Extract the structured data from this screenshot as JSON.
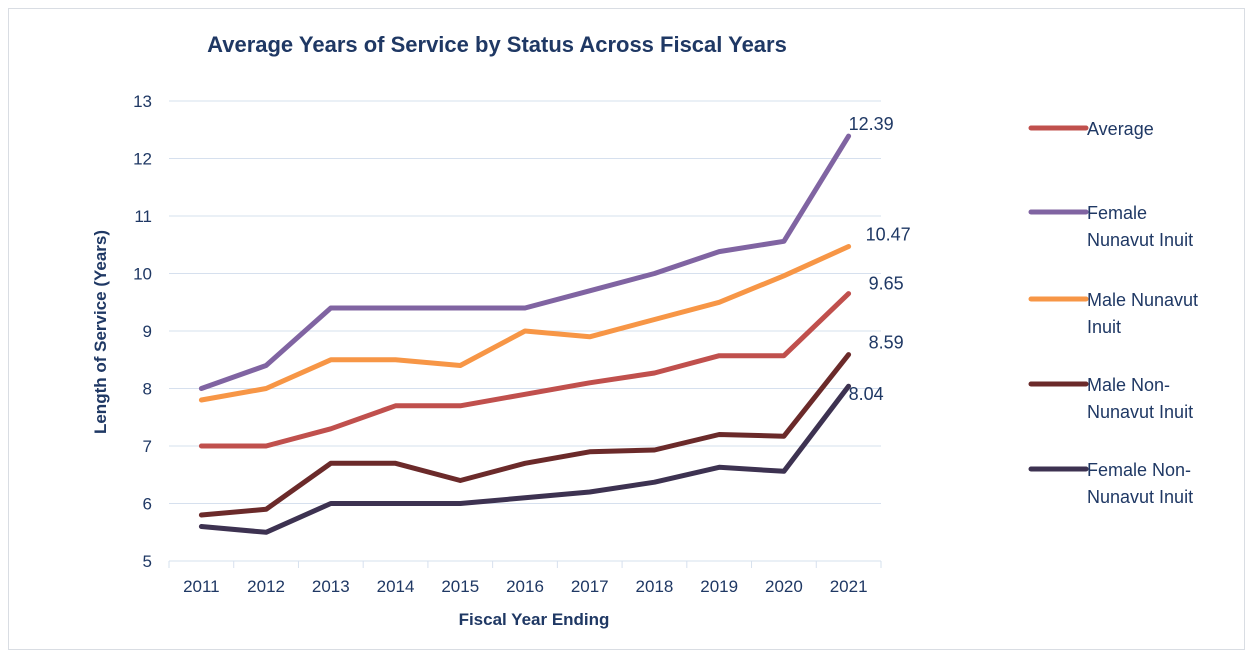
{
  "chart_data": {
    "type": "line",
    "title": "Average Years of Service by Status Across Fiscal  Years",
    "xlabel": "Fiscal Year Ending",
    "ylabel": "Length of Service (Years)",
    "categories": [
      "2011",
      "2012",
      "2013",
      "2014",
      "2015",
      "2016",
      "2017",
      "2018",
      "2019",
      "2020",
      "2021"
    ],
    "ylim": [
      5,
      13
    ],
    "yticks": [
      5,
      6,
      7,
      8,
      9,
      10,
      11,
      12,
      13
    ],
    "grid": true,
    "legend_position": "right",
    "series": [
      {
        "name": "Average",
        "legend_lines": [
          "Average"
        ],
        "color": "#c0504d",
        "values": [
          7.0,
          7.0,
          7.3,
          7.7,
          7.7,
          7.9,
          8.1,
          8.27,
          8.57,
          8.57,
          9.65
        ],
        "end_label": "9.65"
      },
      {
        "name": "Female Nunavut Inuit",
        "legend_lines": [
          "Female",
          "Nunavut Inuit"
        ],
        "color": "#8064a2",
        "values": [
          8.0,
          8.4,
          9.4,
          9.4,
          9.4,
          9.4,
          9.7,
          10.0,
          10.38,
          10.56,
          12.39
        ],
        "end_label": "12.39"
      },
      {
        "name": "Male Nunavut Inuit",
        "legend_lines": [
          "Male Nunavut",
          "Inuit"
        ],
        "color": "#f79646",
        "values": [
          7.8,
          8.0,
          8.5,
          8.5,
          8.4,
          9.0,
          8.9,
          9.2,
          9.5,
          9.96,
          10.47
        ],
        "end_label": "10.47"
      },
      {
        "name": "Male Non-Nunavut Inuit",
        "legend_lines": [
          "Male Non-",
          "Nunavut Inuit"
        ],
        "color": "#6b2a2a",
        "values": [
          5.8,
          5.9,
          6.7,
          6.7,
          6.4,
          6.7,
          6.9,
          6.93,
          7.2,
          7.17,
          8.59
        ],
        "end_label": "8.59"
      },
      {
        "name": "Female Non-Nunavut Inuit",
        "legend_lines": [
          "Female Non-",
          "Nunavut Inuit"
        ],
        "color": "#3d3251",
        "values": [
          5.6,
          5.5,
          6.0,
          6.0,
          6.0,
          6.1,
          6.2,
          6.37,
          6.63,
          6.56,
          8.04
        ],
        "end_label": "8.04"
      }
    ]
  }
}
